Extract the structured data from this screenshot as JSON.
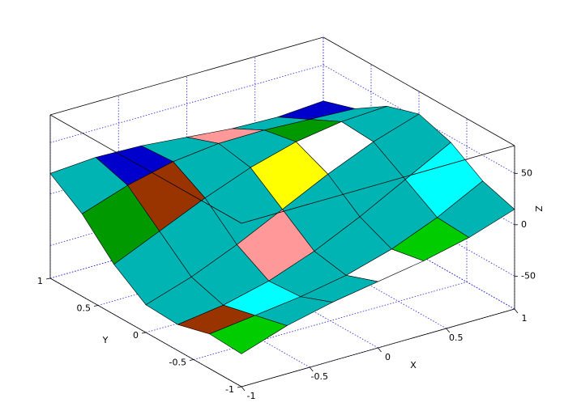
{
  "chart_data": {
    "type": "surface",
    "x": [
      -1,
      -0.6667,
      -0.3333,
      0,
      0.3333,
      0.6667,
      1
    ],
    "y": [
      -1,
      -0.6667,
      -0.3333,
      0,
      0.3333,
      0.6667,
      1
    ],
    "z": [
      [
        -50,
        -48.3,
        -56.7,
        -55,
        -33.3,
        -1.7,
        20
      ],
      [
        -35.2,
        -42.8,
        -50.4,
        -40.6,
        -13.6,
        13.4,
        23.1
      ],
      [
        -25,
        -37.2,
        -39.5,
        -21.7,
        6.1,
        23.9,
        21.7
      ],
      [
        -17.5,
        -29,
        -23.1,
        0,
        23.1,
        29,
        17.5
      ],
      [
        -10,
        -16.1,
        -2.2,
        21.7,
        35.6,
        29.4,
        13.3
      ],
      [
        0.2,
        2.1,
        21.4,
        40.6,
        42.6,
        27.2,
        11.9
      ],
      [
        15,
        25,
        45,
        55,
        45,
        25,
        15
      ]
    ],
    "xlim": [
      -1,
      1
    ],
    "ylim": [
      -1,
      1
    ],
    "zlim": [
      -82,
      77
    ],
    "xticks": [
      -1,
      -0.5,
      0,
      0.5,
      1
    ],
    "yticks": [
      -1,
      -0.5,
      0,
      0.5,
      1
    ],
    "zticks": [
      -50,
      0,
      50
    ],
    "xlabel": "X",
    "ylabel": "Y",
    "zlabel": "Z",
    "grid": true,
    "colors": [
      "#00b4b4",
      "#00cc00",
      "#cc0000",
      "#0000cc",
      "#cc00cc",
      "#009900",
      "#99ccff",
      "#ffff00",
      "#993300",
      "#ff9999",
      "#ffffff",
      "#00ffff",
      "#990000"
    ]
  }
}
